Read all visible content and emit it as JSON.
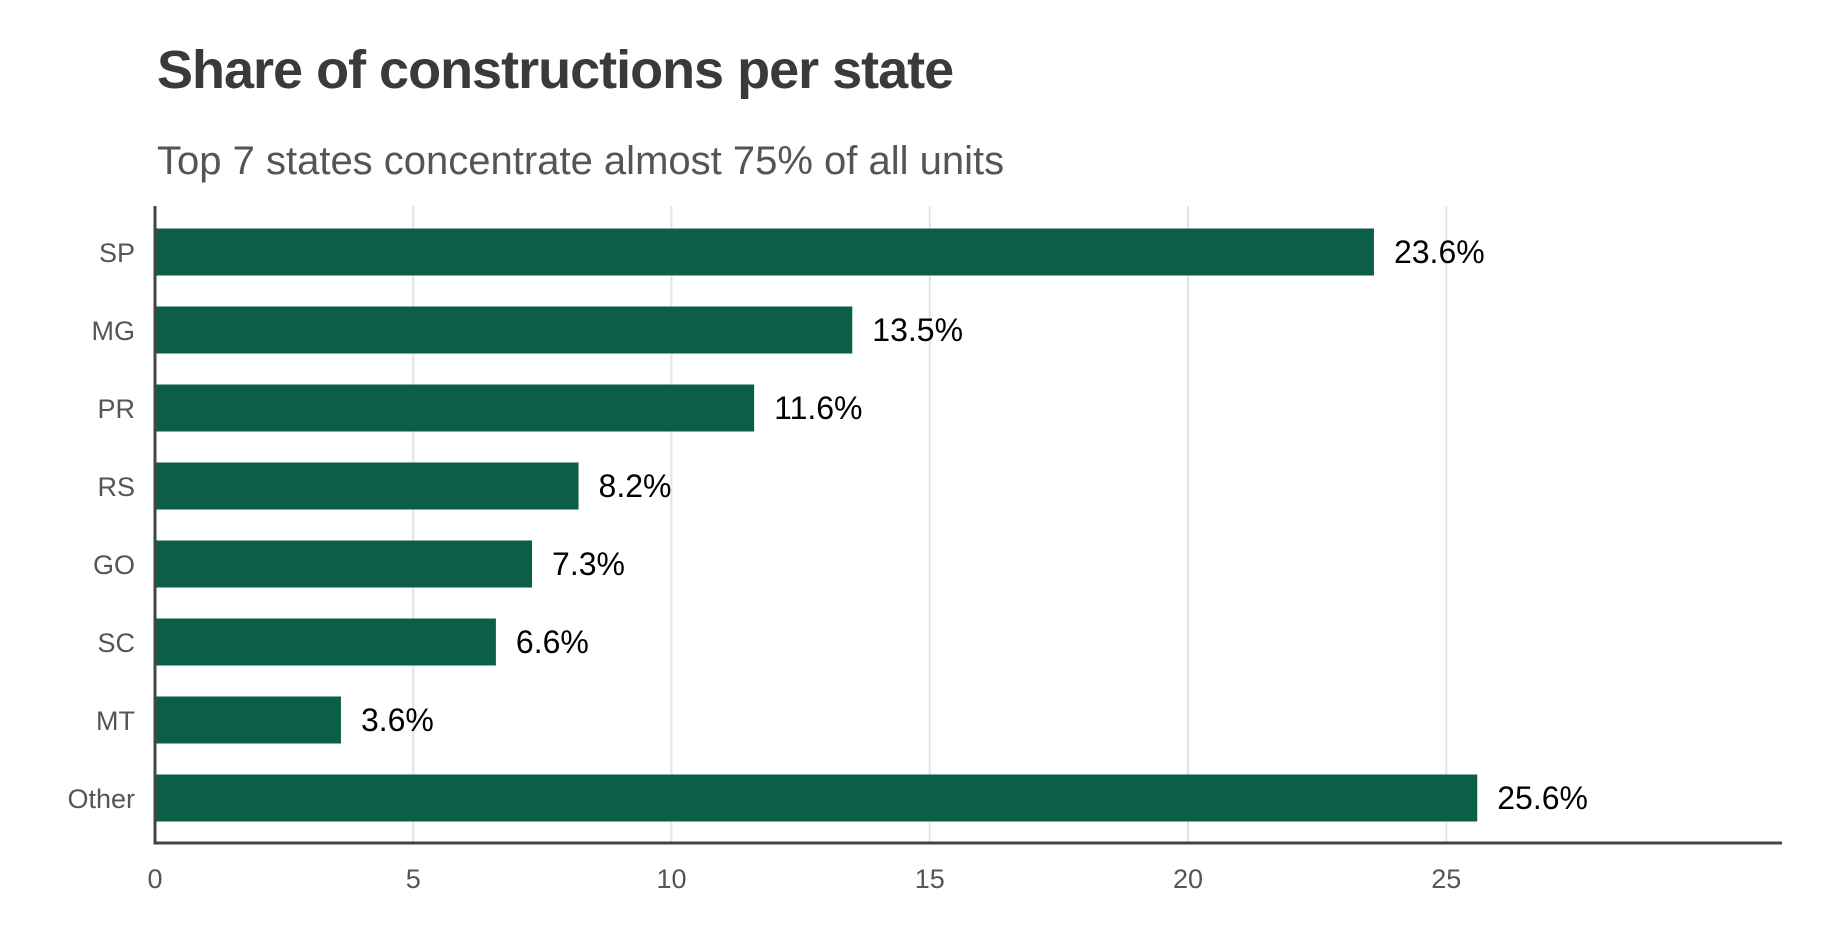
{
  "chart_data": {
    "type": "bar",
    "orientation": "horizontal",
    "title": "Share of constructions per state",
    "subtitle": "Top 7 states concentrate almost 75% of all units",
    "xlabel": "",
    "ylabel": "",
    "categories": [
      "SP",
      "MG",
      "PR",
      "RS",
      "GO",
      "SC",
      "MT",
      "Other"
    ],
    "values": [
      23.6,
      13.5,
      11.6,
      8.2,
      7.3,
      6.6,
      3.6,
      25.6
    ],
    "data_labels": [
      "23.6%",
      "13.5%",
      "11.6%",
      "8.2%",
      "7.3%",
      "6.6%",
      "3.6%",
      "25.6%"
    ],
    "xlim": [
      0,
      31.5
    ],
    "xticks": [
      0,
      5,
      10,
      15,
      20,
      25
    ],
    "xtick_labels": [
      "0",
      "5",
      "10",
      "15",
      "20",
      "25"
    ],
    "grid": "vertical",
    "legend": "none",
    "colors": {
      "bar": "#0b5f48",
      "grid": "#e3e3e3",
      "axis": "#444444",
      "title": "#3a3a3a",
      "subtitle": "#555555",
      "label": "#555555",
      "data_label": "#000000"
    }
  }
}
